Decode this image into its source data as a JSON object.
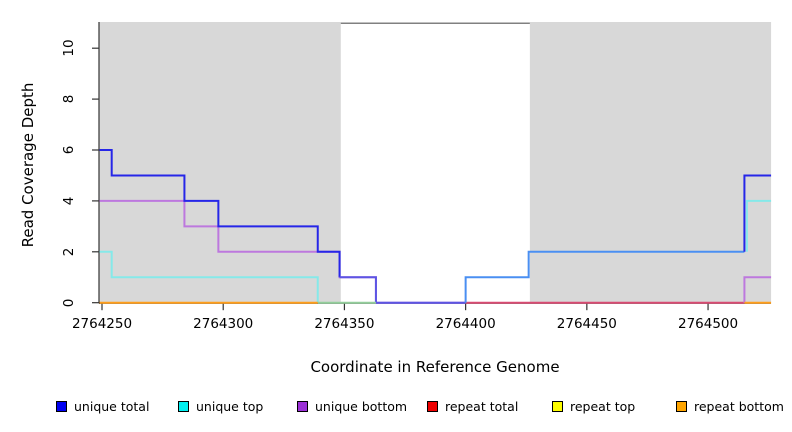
{
  "x_axis": {
    "title": "Coordinate in Reference Genome",
    "tick_labels": [
      "2764250",
      "2764300",
      "2764350",
      "2764400",
      "2764450",
      "2764500"
    ]
  },
  "y_axis": {
    "title": "Read Coverage Depth",
    "tick_labels": [
      "0",
      "2",
      "4",
      "6",
      "8",
      "10"
    ]
  },
  "legend": {
    "items": [
      {
        "label": "unique total",
        "color": "#0000f0"
      },
      {
        "label": "unique top",
        "color": "#00eeee"
      },
      {
        "label": "unique bottom",
        "color": "#9b30d6"
      },
      {
        "label": "repeat total",
        "color": "#ee0000"
      },
      {
        "label": "repeat top",
        "color": "#fdfd00"
      },
      {
        "label": "repeat bottom",
        "color": "#ffa500"
      }
    ]
  },
  "chart_data": {
    "type": "line",
    "step_mode": "post",
    "title": "",
    "xlabel": "Coordinate in Reference Genome",
    "ylabel": "Read Coverage Depth",
    "xlim": [
      2764249,
      2764526
    ],
    "ylim": [
      0,
      11
    ],
    "x_ticks": [
      2764250,
      2764300,
      2764350,
      2764400,
      2764450,
      2764500
    ],
    "y_ticks": [
      0,
      2,
      4,
      6,
      8,
      10
    ],
    "grid": false,
    "legend_position": "bottom",
    "shaded_regions": [
      {
        "x0": 2764249,
        "x1": 2764348.5,
        "color": "#d8d8d8"
      },
      {
        "x0": 2764426.5,
        "x1": 2764526,
        "color": "#d8d8d8"
      }
    ],
    "gap_top_line": {
      "x0": 2764348.5,
      "x1": 2764426.5,
      "y": 11,
      "color": "#808080"
    },
    "series": [
      {
        "name": "unique total",
        "color": "#0000f0",
        "steps": [
          [
            2764249,
            6
          ],
          [
            2764254,
            5
          ],
          [
            2764284,
            4
          ],
          [
            2764298,
            3
          ],
          [
            2764339,
            2
          ],
          [
            2764348,
            1
          ],
          [
            2764363,
            0
          ],
          [
            2764400,
            1
          ],
          [
            2764426,
            2
          ],
          [
            2764515,
            5
          ]
        ],
        "x_end": 2764526
      },
      {
        "name": "unique top",
        "color": "#00eeee",
        "steps": [
          [
            2764249,
            2
          ],
          [
            2764254,
            1
          ],
          [
            2764339,
            0
          ],
          [
            2764400,
            1
          ],
          [
            2764426,
            2
          ],
          [
            2764515,
            4
          ]
        ],
        "x_end": 2764526
      },
      {
        "name": "unique bottom",
        "color": "#9b30d6",
        "steps": [
          [
            2764249,
            4
          ],
          [
            2764284,
            3
          ],
          [
            2764298,
            2
          ],
          [
            2764348,
            1
          ],
          [
            2764363,
            0
          ],
          [
            2764515,
            1
          ]
        ],
        "x_end": 2764526
      },
      {
        "name": "repeat total",
        "color": "#ee0000",
        "steps": [
          [
            2764249,
            0
          ]
        ],
        "x_end": 2764526
      },
      {
        "name": "repeat top",
        "color": "#fdfd00",
        "steps": [
          [
            2764249,
            0
          ]
        ],
        "x_end": 2764526
      },
      {
        "name": "repeat bottom",
        "color": "#ffa500",
        "steps": [
          [
            2764249,
            0
          ]
        ],
        "x_end": 2764526
      }
    ],
    "rendered_segments": [
      {
        "color": "#bd78de",
        "points": [
          [
            2764249,
            4
          ],
          [
            2764284,
            4
          ],
          [
            2764284,
            3
          ],
          [
            2764298,
            3
          ],
          [
            2764298,
            2
          ],
          [
            2764348,
            2
          ],
          [
            2764348,
            1
          ],
          [
            2764363,
            1
          ],
          [
            2764363,
            0
          ],
          [
            2764400,
            0
          ]
        ]
      },
      {
        "color": "#2626e8",
        "points": [
          [
            2764249,
            6
          ],
          [
            2764254,
            6
          ],
          [
            2764254,
            5
          ],
          [
            2764284,
            5
          ],
          [
            2764284,
            4
          ],
          [
            2764298,
            4
          ],
          [
            2764298,
            3
          ],
          [
            2764339,
            3
          ],
          [
            2764339,
            2
          ],
          [
            2764348,
            2
          ],
          [
            2764348,
            1
          ]
        ]
      },
      {
        "color": "#5c55e4",
        "points": [
          [
            2764348,
            1
          ],
          [
            2764363,
            1
          ],
          [
            2764363,
            0
          ],
          [
            2764400,
            0
          ]
        ]
      },
      {
        "color": "#85e9e9",
        "points": [
          [
            2764249,
            2
          ],
          [
            2764254,
            2
          ],
          [
            2764254,
            1
          ],
          [
            2764339,
            1
          ],
          [
            2764339,
            0
          ]
        ]
      },
      {
        "color": "#93ce9b",
        "points": [
          [
            2764339,
            0
          ],
          [
            2764363,
            0
          ]
        ]
      },
      {
        "color": "#ff9e1b",
        "points": [
          [
            2764249,
            0
          ],
          [
            2764339,
            0
          ]
        ]
      },
      {
        "color": "#d94b72",
        "points": [
          [
            2764400,
            0
          ],
          [
            2764515,
            0
          ]
        ]
      },
      {
        "color": "#4a8ff2",
        "points": [
          [
            2764400,
            0
          ],
          [
            2764400,
            1
          ],
          [
            2764426,
            1
          ],
          [
            2764426,
            2
          ],
          [
            2764515,
            2
          ]
        ]
      },
      {
        "color": "#2626e8",
        "points": [
          [
            2764515,
            2
          ],
          [
            2764515,
            5
          ],
          [
            2764526,
            5
          ]
        ]
      },
      {
        "color": "#85e9e9",
        "points": [
          [
            2764516,
            2
          ],
          [
            2764516,
            4
          ],
          [
            2764526,
            4
          ]
        ]
      },
      {
        "color": "#bd78de",
        "points": [
          [
            2764515,
            0
          ],
          [
            2764515,
            1
          ],
          [
            2764526,
            1
          ]
        ]
      },
      {
        "color": "#ff9e1b",
        "points": [
          [
            2764515,
            0
          ],
          [
            2764526,
            0
          ]
        ]
      }
    ]
  }
}
